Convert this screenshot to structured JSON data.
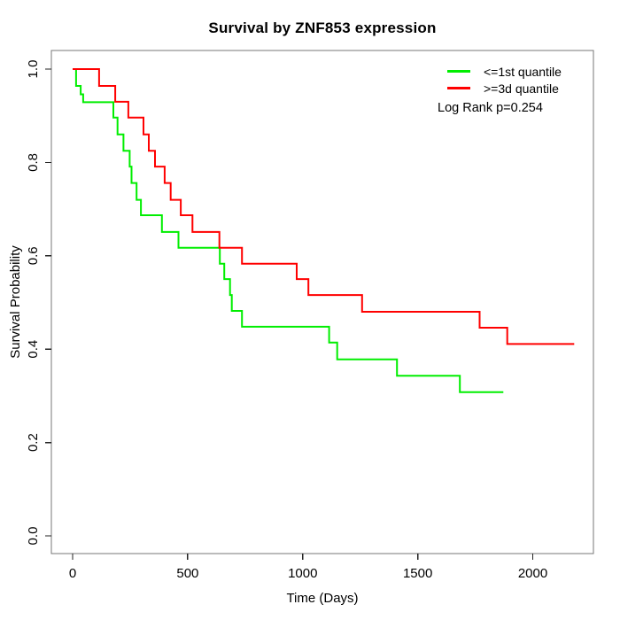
{
  "title": "Survival by ZNF853 expression",
  "chart_data": {
    "type": "line",
    "subtype": "kaplan-meier-step",
    "title": "Survival by ZNF853 expression",
    "xlabel": "Time (Days)",
    "ylabel": "Survival Probability",
    "xlim": [
      0,
      2200
    ],
    "ylim": [
      0.0,
      1.0
    ],
    "grid": false,
    "x_ticks": [
      0,
      500,
      1000,
      1500,
      2000
    ],
    "x_tick_labels": [
      "0",
      "500",
      "1000",
      "1500",
      "2000"
    ],
    "y_ticks": [
      0.0,
      0.2,
      0.4,
      0.6,
      0.8,
      1.0
    ],
    "y_tick_labels": [
      "0.0",
      "0.2",
      "0.4",
      "0.6",
      "0.8",
      "1.0"
    ],
    "legend_position": "topright",
    "annotation": "Log Rank p=0.254",
    "axis_color": "#777777",
    "tick_color": "#222222",
    "series": [
      {
        "name": "<=1st quantile",
        "color": "#00ee00",
        "points": [
          [
            0,
            1.0
          ],
          [
            15,
            0.964
          ],
          [
            35,
            0.946
          ],
          [
            46,
            0.929
          ],
          [
            177,
            0.896
          ],
          [
            195,
            0.86
          ],
          [
            221,
            0.825
          ],
          [
            248,
            0.791
          ],
          [
            256,
            0.756
          ],
          [
            278,
            0.72
          ],
          [
            297,
            0.687
          ],
          [
            388,
            0.651
          ],
          [
            460,
            0.617
          ],
          [
            640,
            0.583
          ],
          [
            659,
            0.55
          ],
          [
            684,
            0.516
          ],
          [
            692,
            0.482
          ],
          [
            736,
            0.448
          ],
          [
            1115,
            0.414
          ],
          [
            1150,
            0.378
          ],
          [
            1410,
            0.343
          ],
          [
            1683,
            0.308
          ],
          [
            1872,
            0.308
          ]
        ]
      },
      {
        "name": ">=3d quantile",
        "color": "#ff0000",
        "points": [
          [
            0,
            1.0
          ],
          [
            115,
            0.964
          ],
          [
            185,
            0.93
          ],
          [
            242,
            0.896
          ],
          [
            308,
            0.86
          ],
          [
            331,
            0.825
          ],
          [
            358,
            0.791
          ],
          [
            400,
            0.756
          ],
          [
            426,
            0.72
          ],
          [
            470,
            0.687
          ],
          [
            521,
            0.651
          ],
          [
            638,
            0.617
          ],
          [
            736,
            0.583
          ],
          [
            974,
            0.55
          ],
          [
            1025,
            0.516
          ],
          [
            1258,
            0.48
          ],
          [
            1769,
            0.446
          ],
          [
            1889,
            0.411
          ],
          [
            2180,
            0.411
          ]
        ]
      }
    ]
  },
  "legend": {
    "entries": [
      {
        "label": "<=1st quantile",
        "color": "#00ee00"
      },
      {
        "label": ">=3d quantile",
        "color": "#ff0000"
      }
    ],
    "annotation": "Log Rank p=0.254"
  }
}
